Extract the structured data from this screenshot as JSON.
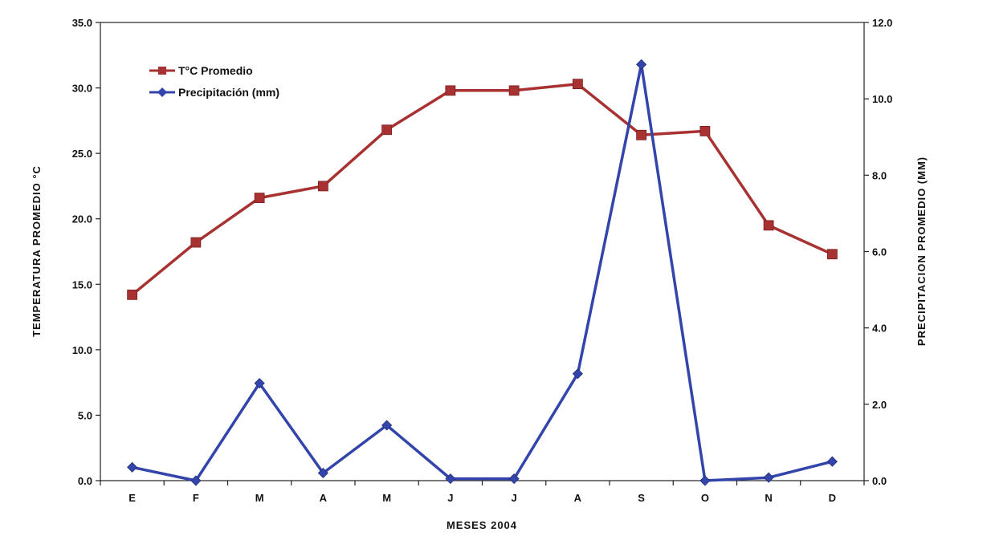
{
  "chart_data": {
    "type": "line",
    "title": "",
    "xlabel": "MESES 2004",
    "ylabel_left": "TEMPERATURA PROMEDIO °C",
    "ylabel_right": "PRECIPITACION PROMEDIO (MM)",
    "categories": [
      "E",
      "F",
      "M",
      "A",
      "M",
      "J",
      "J",
      "A",
      "S",
      "O",
      "N",
      "D"
    ],
    "y_left": {
      "lim": [
        0,
        35
      ],
      "ticks": [
        "0.0",
        "5.0",
        "10.0",
        "15.0",
        "20.0",
        "25.0",
        "30.0",
        "35.0"
      ]
    },
    "y_right": {
      "lim": [
        0,
        12
      ],
      "ticks": [
        "0.0",
        "2.0",
        "4.0",
        "6.0",
        "8.0",
        "10.0",
        "12.0"
      ]
    },
    "grid": false,
    "legend_position": "top-left",
    "series": [
      {
        "name": "T°C Promedio",
        "axis": "left",
        "color": "#a83232",
        "marker": "square",
        "values": [
          14.2,
          18.2,
          21.6,
          22.5,
          26.8,
          29.8,
          29.8,
          30.3,
          26.4,
          26.7,
          19.5,
          17.3
        ]
      },
      {
        "name": "Precipitación (mm)",
        "axis": "right",
        "color": "#3344aa",
        "marker": "diamond",
        "values": [
          0.35,
          0.0,
          2.55,
          0.2,
          1.45,
          0.05,
          0.05,
          2.8,
          10.9,
          0.0,
          0.08,
          0.5
        ]
      }
    ]
  }
}
